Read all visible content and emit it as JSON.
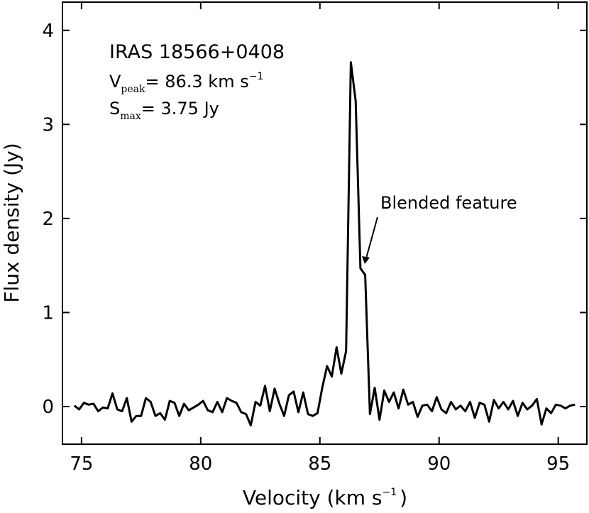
{
  "chart_data": {
    "type": "line",
    "xlabel_main": "Velocity (km s",
    "xlabel_sup": "−1",
    "xlabel_end": ")",
    "ylabel": "Flux density (Jy)",
    "xlim": [
      74.2,
      96.2
    ],
    "ylim": [
      -0.4,
      4.3
    ],
    "xticks": [
      75,
      80,
      85,
      90,
      95
    ],
    "yticks": [
      0,
      1,
      2,
      3,
      4
    ],
    "grid": false,
    "line_color": "#000000",
    "annotations": {
      "source": "IRAS 18566+0408",
      "vpeak_main": "V",
      "vpeak_sub": "peak",
      "vpeak_value": "= 86.3 km s",
      "vpeak_sup": "−1",
      "smax_main": "S",
      "smax_sub": "max",
      "smax_value": "= 3.75 Jy",
      "feature": "Blended feature",
      "feature_point": [
        86.85,
        1.5
      ]
    },
    "x": [
      74.7,
      74.9,
      75.1,
      75.3,
      75.5,
      75.7,
      75.9,
      76.1,
      76.3,
      76.5,
      76.7,
      76.9,
      77.1,
      77.3,
      77.5,
      77.7,
      77.9,
      78.1,
      78.3,
      78.5,
      78.7,
      78.9,
      79.1,
      79.3,
      79.5,
      79.7,
      79.9,
      80.1,
      80.3,
      80.5,
      80.7,
      80.9,
      81.1,
      81.3,
      81.5,
      81.7,
      81.9,
      82.1,
      82.3,
      82.5,
      82.7,
      82.9,
      83.1,
      83.3,
      83.5,
      83.7,
      83.9,
      84.1,
      84.3,
      84.5,
      84.7,
      84.9,
      85.1,
      85.3,
      85.5,
      85.7,
      85.9,
      86.1,
      86.3,
      86.5,
      86.7,
      86.9,
      87.1,
      87.3,
      87.5,
      87.7,
      87.9,
      88.1,
      88.3,
      88.5,
      88.7,
      88.9,
      89.1,
      89.3,
      89.5,
      89.7,
      89.9,
      90.1,
      90.3,
      90.5,
      90.7,
      90.9,
      91.1,
      91.3,
      91.5,
      91.7,
      91.9,
      92.1,
      92.3,
      92.5,
      92.7,
      92.9,
      93.1,
      93.3,
      93.5,
      93.7,
      93.9,
      94.1,
      94.3,
      94.5,
      94.7,
      94.9,
      95.1,
      95.3,
      95.5,
      95.7
    ],
    "y": [
      0.01,
      -0.03,
      0.04,
      0.02,
      0.03,
      -0.05,
      -0.01,
      -0.02,
      0.14,
      -0.03,
      -0.05,
      0.09,
      -0.16,
      -0.1,
      -0.1,
      0.09,
      0.05,
      -0.1,
      -0.07,
      -0.14,
      0.06,
      0.04,
      -0.1,
      0.03,
      -0.04,
      -0.01,
      0.02,
      0.06,
      -0.04,
      -0.06,
      0.05,
      -0.06,
      0.09,
      0.06,
      0.04,
      -0.06,
      -0.08,
      -0.2,
      0.05,
      0.01,
      0.22,
      -0.05,
      0.19,
      0.03,
      -0.1,
      0.12,
      0.16,
      -0.06,
      0.15,
      -0.08,
      -0.1,
      -0.07,
      0.2,
      0.43,
      0.32,
      0.63,
      0.35,
      0.59,
      3.66,
      3.25,
      1.47,
      1.4,
      -0.08,
      0.2,
      -0.14,
      0.17,
      0.05,
      0.15,
      -0.02,
      0.18,
      0.02,
      0.05,
      -0.11,
      0.01,
      0.02,
      -0.05,
      0.1,
      -0.03,
      -0.07,
      0.05,
      -0.03,
      0.01,
      -0.05,
      0.05,
      -0.12,
      0.04,
      0.02,
      -0.16,
      0.07,
      -0.02,
      0.05,
      -0.03,
      0.06,
      -0.1,
      0.04,
      -0.03,
      0.01,
      0.08,
      -0.19,
      -0.02,
      -0.07,
      0.02,
      0.01,
      -0.02,
      0.01,
      0.02
    ]
  }
}
